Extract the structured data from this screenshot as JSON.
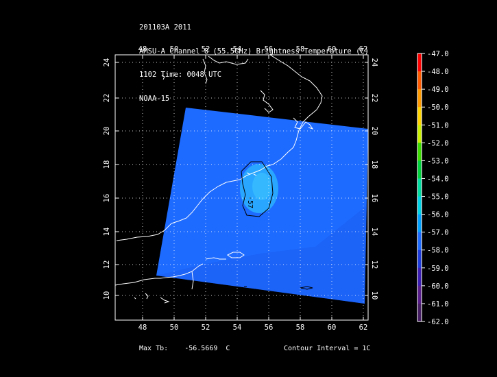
{
  "header": {
    "lines": [
      "201103A 2011",
      "AMSU-A Channel 8 (55.5GHz) Brightness Temperature (C)",
      "1102 Time: 0048 UTC",
      "NOAA-15"
    ]
  },
  "map": {
    "x_ticks": [
      "48",
      "50",
      "52",
      "54",
      "56",
      "58",
      "60",
      "62"
    ],
    "y_ticks": [
      "24",
      "22",
      "20",
      "18",
      "16",
      "14",
      "12",
      "10"
    ],
    "contour_label": "-57",
    "swath_color": "#1e6bff",
    "warm_spot_color": "#29a6ff",
    "coastline_color": "#ffffff"
  },
  "colorbar": {
    "labels": [
      "-47.0",
      "-48.0",
      "-49.0",
      "-50.0",
      "-51.0",
      "-52.0",
      "-53.0",
      "-54.0",
      "-55.0",
      "-56.0",
      "-57.0",
      "-58.0",
      "-59.0",
      "-60.0",
      "-61.0",
      "-62.0"
    ],
    "colors": [
      "#ff0000",
      "#ff5a00",
      "#ff9a00",
      "#ffd400",
      "#c8f000",
      "#3cdc00",
      "#00d23c",
      "#00dca0",
      "#00d2e6",
      "#00a0ff",
      "#1e6bff",
      "#1e3cdc",
      "#3c1eb4",
      "#5a1e8c",
      "#461e64",
      "#2d1446"
    ]
  },
  "footer": {
    "max_tb": "Max Tb:    -56.5669  C",
    "contour_interval": "Contour Interval = 1C"
  }
}
